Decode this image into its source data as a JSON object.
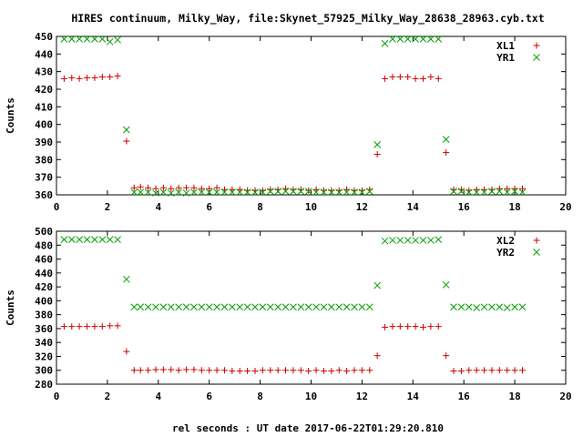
{
  "title": "HIRES continuum, Milky_Way, file:Skynet_57925_Milky_Way_28638_28963.cyb.txt",
  "xlabel": "rel seconds : UT date 2017-06-22T01:29:20.810",
  "chart_data": [
    {
      "type": "scatter",
      "ylabel": "Counts",
      "xlim": [
        0,
        20
      ],
      "ylim": [
        360,
        450
      ],
      "xticks": [
        0,
        2,
        4,
        6,
        8,
        10,
        12,
        14,
        16,
        18,
        20
      ],
      "yticks": [
        360,
        370,
        380,
        390,
        400,
        410,
        420,
        430,
        440,
        450
      ],
      "legend_position": "top-right",
      "series": [
        {
          "name": "XL1",
          "marker": "plus",
          "color": "#cc0000",
          "x": [
            0.3,
            0.6,
            0.9,
            1.2,
            1.5,
            1.8,
            2.1,
            2.4,
            2.75,
            3.05,
            3.3,
            3.6,
            3.9,
            4.2,
            4.5,
            4.8,
            5.1,
            5.4,
            5.7,
            6.0,
            6.3,
            6.6,
            6.9,
            7.2,
            7.5,
            7.8,
            8.1,
            8.4,
            8.7,
            9.0,
            9.3,
            9.6,
            9.9,
            10.2,
            10.5,
            10.8,
            11.1,
            11.4,
            11.7,
            12.0,
            12.3,
            12.6,
            12.9,
            13.2,
            13.5,
            13.8,
            14.1,
            14.4,
            14.7,
            15.0,
            15.3,
            15.6,
            15.9,
            16.2,
            16.5,
            16.8,
            17.1,
            17.4,
            17.7,
            18.0,
            18.3
          ],
          "y": [
            426,
            426.5,
            426,
            426.5,
            426.5,
            427,
            427,
            427.5,
            390.5,
            364,
            364.5,
            364,
            363.5,
            364,
            363.5,
            364,
            364,
            364,
            363.5,
            363.5,
            364,
            363,
            363,
            363,
            362.5,
            362.5,
            362.5,
            363,
            363,
            363.5,
            363,
            363,
            362.5,
            363,
            362.5,
            362.5,
            362.5,
            363,
            362.5,
            362.5,
            363,
            383,
            426,
            427,
            427,
            427,
            426,
            426,
            427,
            426,
            384,
            363,
            363,
            362.5,
            363,
            363,
            363,
            363.5,
            363.5,
            363.5,
            363.5
          ]
        },
        {
          "name": "YR1",
          "marker": "cross",
          "color": "#00a000",
          "x": [
            0.3,
            0.6,
            0.9,
            1.2,
            1.5,
            1.8,
            2.1,
            2.4,
            2.75,
            3.05,
            3.3,
            3.6,
            3.9,
            4.2,
            4.5,
            4.8,
            5.1,
            5.4,
            5.7,
            6.0,
            6.3,
            6.6,
            6.9,
            7.2,
            7.5,
            7.8,
            8.1,
            8.4,
            8.7,
            9.0,
            9.3,
            9.6,
            9.9,
            10.2,
            10.5,
            10.8,
            11.1,
            11.4,
            11.7,
            12.0,
            12.3,
            12.6,
            12.9,
            13.2,
            13.5,
            13.8,
            14.1,
            14.4,
            14.7,
            15.0,
            15.3,
            15.6,
            15.9,
            16.2,
            16.5,
            16.8,
            17.1,
            17.4,
            17.7,
            18.0,
            18.3
          ],
          "y": [
            448.5,
            448.5,
            448.5,
            448.5,
            448.5,
            448.5,
            447,
            448,
            397,
            361.5,
            361.5,
            361.5,
            361,
            361.5,
            361,
            361.5,
            361,
            361.5,
            361.5,
            361.5,
            361.5,
            361.5,
            361.5,
            361.5,
            361.5,
            361.5,
            361.5,
            362,
            362,
            362,
            362,
            362,
            362,
            361.5,
            361.5,
            361.5,
            361.5,
            361.5,
            361.5,
            361.5,
            362,
            388.5,
            446,
            448.5,
            448.5,
            448.5,
            448.5,
            448.5,
            448.5,
            448.5,
            391.5,
            362,
            362,
            361.5,
            361.5,
            361.5,
            362,
            362,
            361.5,
            362,
            361.5
          ]
        }
      ]
    },
    {
      "type": "scatter",
      "ylabel": "Counts",
      "xlim": [
        0,
        20
      ],
      "ylim": [
        280,
        500
      ],
      "xticks": [
        0,
        2,
        4,
        6,
        8,
        10,
        12,
        14,
        16,
        18,
        20
      ],
      "yticks": [
        280,
        300,
        320,
        340,
        360,
        380,
        400,
        420,
        440,
        460,
        480,
        500
      ],
      "legend_position": "top-right",
      "series": [
        {
          "name": "XL2",
          "marker": "plus",
          "color": "#cc0000",
          "x": [
            0.3,
            0.6,
            0.9,
            1.2,
            1.5,
            1.8,
            2.1,
            2.4,
            2.75,
            3.05,
            3.3,
            3.6,
            3.9,
            4.2,
            4.5,
            4.8,
            5.1,
            5.4,
            5.7,
            6.0,
            6.3,
            6.6,
            6.9,
            7.2,
            7.5,
            7.8,
            8.1,
            8.4,
            8.7,
            9.0,
            9.3,
            9.6,
            9.9,
            10.2,
            10.5,
            10.8,
            11.1,
            11.4,
            11.7,
            12.0,
            12.3,
            12.6,
            12.9,
            13.2,
            13.5,
            13.8,
            14.1,
            14.4,
            14.7,
            15.0,
            15.3,
            15.6,
            15.9,
            16.2,
            16.5,
            16.8,
            17.1,
            17.4,
            17.7,
            18.0,
            18.3
          ],
          "y": [
            363,
            363,
            363,
            363,
            363,
            363,
            364,
            364,
            327,
            300,
            300,
            300,
            301,
            301,
            301,
            300,
            301,
            301,
            300,
            300,
            300,
            300,
            299,
            299,
            299,
            299,
            300,
            300,
            300,
            300,
            300,
            300,
            299,
            300,
            299,
            299,
            300,
            299,
            300,
            300,
            300,
            321,
            362,
            363,
            363,
            363,
            363,
            362,
            363,
            363,
            321,
            299,
            299,
            300,
            300,
            300,
            300,
            300,
            300,
            300,
            300
          ]
        },
        {
          "name": "YR2",
          "marker": "cross",
          "color": "#00a000",
          "x": [
            0.3,
            0.6,
            0.9,
            1.2,
            1.5,
            1.8,
            2.1,
            2.4,
            2.75,
            3.05,
            3.3,
            3.6,
            3.9,
            4.2,
            4.5,
            4.8,
            5.1,
            5.4,
            5.7,
            6.0,
            6.3,
            6.6,
            6.9,
            7.2,
            7.5,
            7.8,
            8.1,
            8.4,
            8.7,
            9.0,
            9.3,
            9.6,
            9.9,
            10.2,
            10.5,
            10.8,
            11.1,
            11.4,
            11.7,
            12.0,
            12.3,
            12.6,
            12.9,
            13.2,
            13.5,
            13.8,
            14.1,
            14.4,
            14.7,
            15.0,
            15.3,
            15.6,
            15.9,
            16.2,
            16.5,
            16.8,
            17.1,
            17.4,
            17.7,
            18.0,
            18.3
          ],
          "y": [
            488,
            488,
            488,
            488,
            488,
            488,
            488,
            488,
            431,
            391,
            391,
            391,
            391,
            391,
            391,
            391,
            391,
            391,
            391,
            391,
            391,
            391,
            391,
            391,
            391,
            391,
            391,
            391,
            391,
            391,
            391,
            391,
            391,
            391,
            391,
            391,
            391,
            391,
            391,
            391,
            391,
            422,
            486,
            487,
            487,
            487,
            487,
            487,
            487,
            488,
            423,
            391,
            391,
            391,
            390,
            391,
            391,
            391,
            390,
            391,
            391
          ]
        }
      ]
    }
  ]
}
